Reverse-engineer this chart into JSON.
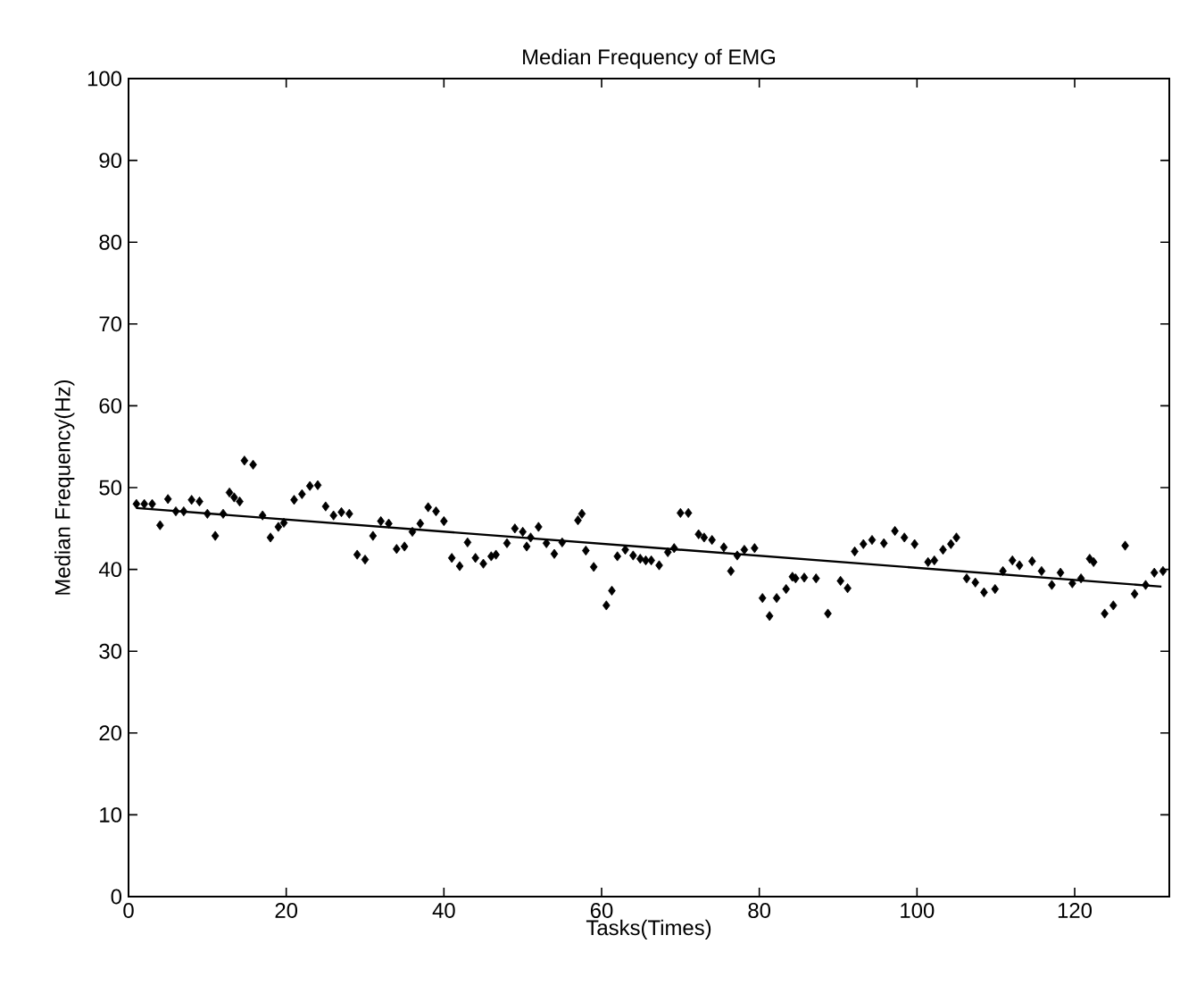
{
  "chart_data": {
    "type": "scatter",
    "title": "Median Frequency of EMG",
    "xlabel": "Tasks(Times)",
    "ylabel": "Median Frequency(Hz)",
    "xlim": [
      0,
      132
    ],
    "ylim": [
      0,
      100
    ],
    "xticks": [
      0,
      20,
      40,
      60,
      80,
      100,
      120
    ],
    "yticks": [
      0,
      10,
      20,
      30,
      40,
      50,
      60,
      70,
      80,
      90,
      100
    ],
    "series": [
      {
        "color": "#000000",
        "marker": "diamond",
        "x": [
          1,
          2,
          3,
          4,
          5,
          6,
          7,
          8,
          9,
          10,
          11,
          12,
          12.8,
          13.4,
          14.1,
          14.7,
          15.8,
          17,
          18,
          19,
          19.7,
          21,
          22,
          23,
          24,
          25,
          26,
          27,
          28,
          29,
          30,
          31,
          32,
          33,
          34,
          35,
          36,
          37,
          38,
          39,
          40,
          41,
          42,
          43,
          44,
          45,
          46,
          46.6,
          48,
          49,
          50,
          50.5,
          51,
          52,
          53,
          54,
          55,
          57,
          57.5,
          58,
          59,
          60.6,
          61.3,
          62,
          63,
          64,
          64.9,
          65.6,
          66.3,
          67.3,
          68.4,
          69.2,
          70,
          71,
          72.3,
          73,
          74,
          75.5,
          76.4,
          77.2,
          78.1,
          79.4,
          80.4,
          81.3,
          82.2,
          83.4,
          84.2,
          84.6,
          85.7,
          87.2,
          88.7,
          90.3,
          91.2,
          92.1,
          93.2,
          94.3,
          95.8,
          97.2,
          98.4,
          99.7,
          101.4,
          102.2,
          103.3,
          104.3,
          105,
          106.3,
          107.4,
          108.5,
          109.9,
          110.9,
          112.1,
          113,
          114.6,
          115.8,
          117.1,
          118.2,
          119.7,
          120.8,
          121.9,
          122.4,
          123.8,
          124.9,
          126.4,
          127.6,
          129,
          130.1,
          131.2
        ],
        "values": [
          48,
          48,
          48,
          45.4,
          48.6,
          47.1,
          47.1,
          48.5,
          48.3,
          46.8,
          44.1,
          46.8,
          49.4,
          48.8,
          48.3,
          53.3,
          52.8,
          46.6,
          43.9,
          45.2,
          45.7,
          48.5,
          49.2,
          50.2,
          50.3,
          47.7,
          46.6,
          47,
          46.8,
          41.8,
          41.2,
          44.1,
          45.9,
          45.6,
          42.5,
          42.8,
          44.6,
          45.6,
          47.6,
          47.1,
          45.9,
          41.4,
          40.4,
          43.3,
          41.4,
          40.7,
          41.6,
          41.8,
          43.2,
          45,
          44.6,
          42.8,
          43.9,
          45.2,
          43.2,
          41.9,
          43.3,
          46,
          46.8,
          42.3,
          40.3,
          35.6,
          37.4,
          41.6,
          42.4,
          41.7,
          41.3,
          41.1,
          41.1,
          40.5,
          42.1,
          42.6,
          46.9,
          46.9,
          44.3,
          43.9,
          43.6,
          42.7,
          39.8,
          41.7,
          42.4,
          42.6,
          36.5,
          34.3,
          36.5,
          37.6,
          39.1,
          38.9,
          39,
          38.9,
          34.6,
          38.6,
          37.7,
          42.2,
          43.1,
          43.6,
          43.2,
          44.7,
          43.9,
          43.1,
          40.9,
          41.1,
          42.4,
          43.1,
          43.9,
          38.9,
          38.4,
          37.2,
          37.6,
          39.8,
          41.1,
          40.5,
          41,
          39.8,
          38.1,
          39.6,
          38.3,
          38.9,
          41.3,
          40.9,
          34.6,
          35.6,
          42.9,
          37,
          38.1,
          39.6,
          39.8
        ]
      },
      {
        "type": "line",
        "color": "#000000",
        "marker": "none",
        "line_style": "solid",
        "x": [
          1,
          131
        ],
        "values": [
          47.5,
          37.9
        ]
      }
    ]
  }
}
